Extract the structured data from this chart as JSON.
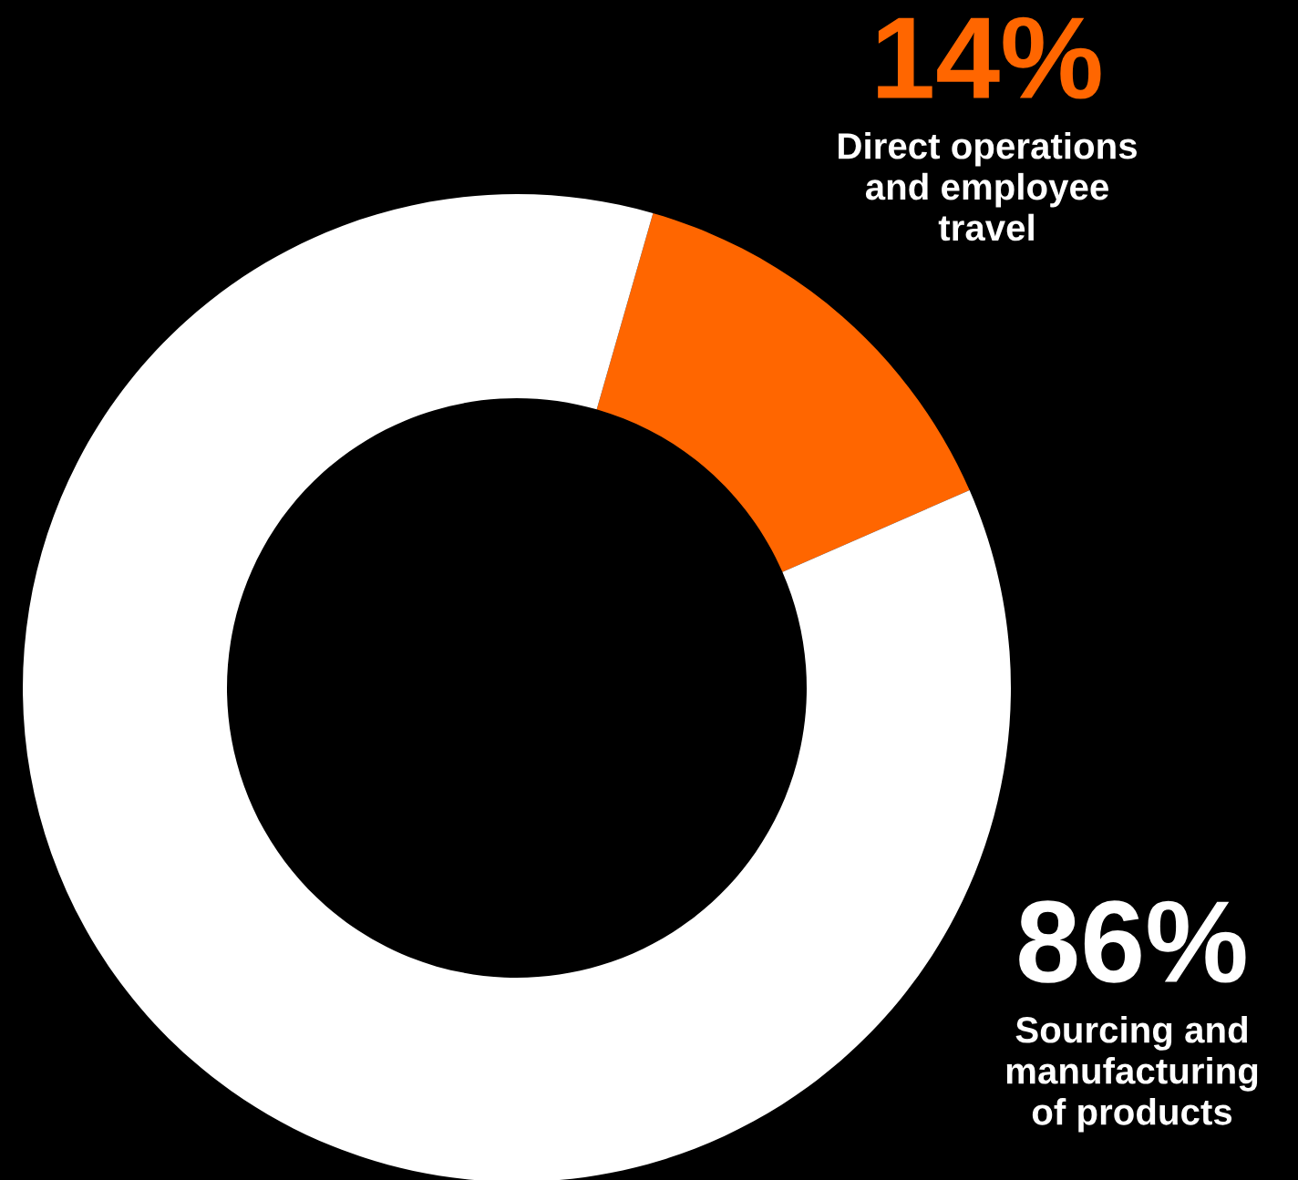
{
  "chart_data": {
    "type": "donut",
    "categories": [
      "Direct operations\nand employee\ntravel",
      "Sourcing and\nmanufacturing\nof products"
    ],
    "values": [
      14,
      86
    ],
    "value_labels": [
      "14%",
      "86%"
    ],
    "colors": [
      "#ff6600",
      "#ffffff"
    ],
    "legend": false
  }
}
